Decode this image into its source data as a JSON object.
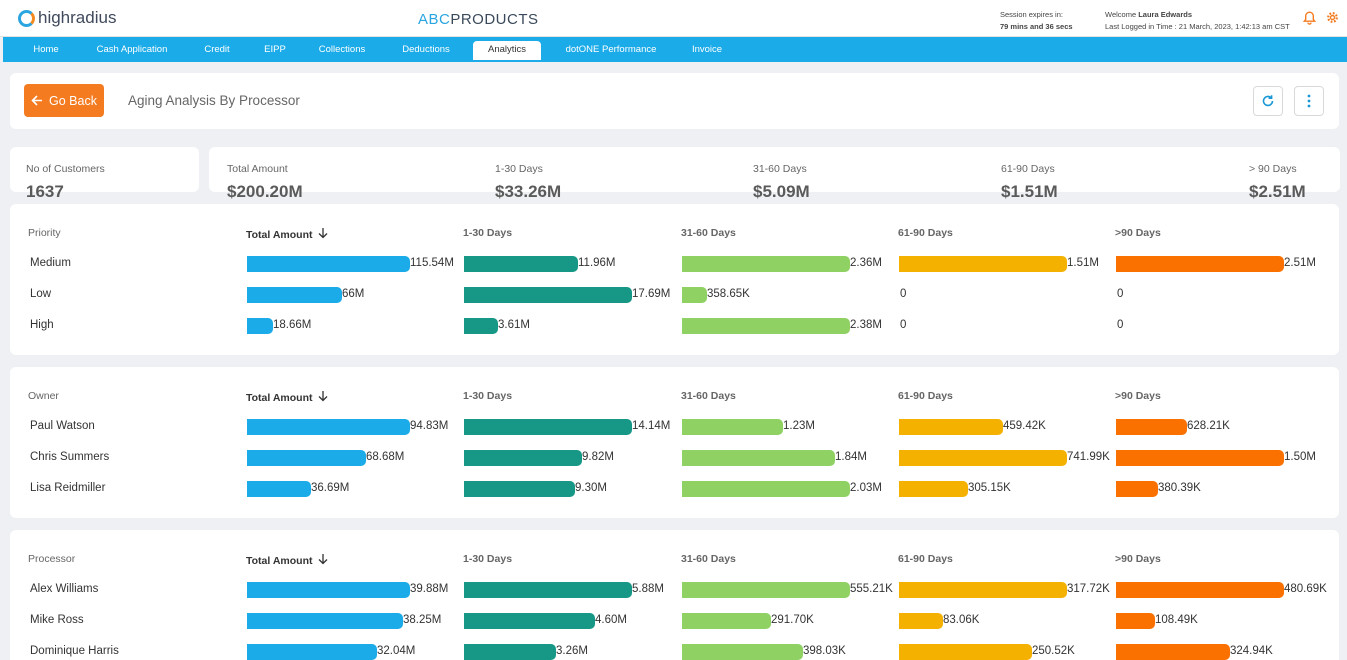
{
  "header": {
    "logo_text": "highradius",
    "brand_prefix": "ABC",
    "brand_suffix": "PRODUCTS",
    "session_label": "Session expires in:",
    "session_time": "79 mins and 36 secs",
    "welcome_label": "Welcome",
    "user_name": "Laura Edwards",
    "last_logged": "Last Logged in Time : 21 March, 2023, 1:42:13 am CST"
  },
  "nav": {
    "tabs": [
      "Home",
      "Cash Application",
      "Credit",
      "EIPP",
      "Collections",
      "Deductions",
      "Analytics",
      "dotONE Performance",
      "Invoice"
    ],
    "active": "Analytics"
  },
  "toolbar": {
    "go_back_label": "Go Back",
    "page_title": "Aging Analysis By Processor"
  },
  "summary": {
    "customers_label": "No of Customers",
    "customers_value": "1637",
    "stats": [
      {
        "label": "Total Amount",
        "value": "$200.20M"
      },
      {
        "label": "1-30 Days",
        "value": "$33.26M"
      },
      {
        "label": "31-60 Days",
        "value": "$5.09M"
      },
      {
        "label": "61-90 Days",
        "value": "$1.51M"
      },
      {
        "label": "> 90 Days",
        "value": "$2.51M"
      }
    ]
  },
  "tables": [
    {
      "group_label": "Priority",
      "columns": [
        "Total Amount",
        "1-30 Days",
        "31-60 Days",
        "61-90 Days",
        ">90 Days"
      ],
      "rows": [
        {
          "name": "Medium",
          "cells": [
            {
              "label": "115.54M",
              "pct": 100
            },
            {
              "label": "11.96M",
              "pct": 68
            },
            {
              "label": "2.36M",
              "pct": 100
            },
            {
              "label": "1.51M",
              "pct": 100
            },
            {
              "label": "2.51M",
              "pct": 100
            }
          ]
        },
        {
          "name": "Low",
          "cells": [
            {
              "label": "66M",
              "pct": 58
            },
            {
              "label": "17.69M",
              "pct": 100
            },
            {
              "label": "358.65K",
              "pct": 15
            },
            {
              "label": "0",
              "pct": 0
            },
            {
              "label": "0",
              "pct": 0
            }
          ]
        },
        {
          "name": "High",
          "cells": [
            {
              "label": "18.66M",
              "pct": 16
            },
            {
              "label": "3.61M",
              "pct": 20
            },
            {
              "label": "2.38M",
              "pct": 100
            },
            {
              "label": "0",
              "pct": 0
            },
            {
              "label": "0",
              "pct": 0
            }
          ]
        }
      ]
    },
    {
      "group_label": "Owner",
      "columns": [
        "Total Amount",
        "1-30 Days",
        "31-60 Days",
        "61-90 Days",
        ">90 Days"
      ],
      "rows": [
        {
          "name": "Paul Watson",
          "cells": [
            {
              "label": "94.83M",
              "pct": 100
            },
            {
              "label": "14.14M",
              "pct": 100
            },
            {
              "label": "1.23M",
              "pct": 60
            },
            {
              "label": "459.42K",
              "pct": 62
            },
            {
              "label": "628.21K",
              "pct": 42
            }
          ]
        },
        {
          "name": "Chris Summers",
          "cells": [
            {
              "label": "68.68M",
              "pct": 73
            },
            {
              "label": "9.82M",
              "pct": 70
            },
            {
              "label": "1.84M",
              "pct": 91
            },
            {
              "label": "741.99K",
              "pct": 100
            },
            {
              "label": "1.50M",
              "pct": 100
            }
          ]
        },
        {
          "name": "Lisa Reidmiller",
          "cells": [
            {
              "label": "36.69M",
              "pct": 39
            },
            {
              "label": "9.30M",
              "pct": 66
            },
            {
              "label": "2.03M",
              "pct": 100
            },
            {
              "label": "305.15K",
              "pct": 41
            },
            {
              "label": "380.39K",
              "pct": 25
            }
          ]
        }
      ]
    },
    {
      "group_label": "Processor",
      "columns": [
        "Total Amount",
        "1-30 Days",
        "31-60 Days",
        "61-90 Days",
        ">90 Days"
      ],
      "rows": [
        {
          "name": "Alex Williams",
          "cells": [
            {
              "label": "39.88M",
              "pct": 100
            },
            {
              "label": "5.88M",
              "pct": 100
            },
            {
              "label": "555.21K",
              "pct": 100
            },
            {
              "label": "317.72K",
              "pct": 100
            },
            {
              "label": "480.69K",
              "pct": 100
            }
          ]
        },
        {
          "name": "Mike Ross",
          "cells": [
            {
              "label": "38.25M",
              "pct": 96
            },
            {
              "label": "4.60M",
              "pct": 78
            },
            {
              "label": "291.70K",
              "pct": 53
            },
            {
              "label": "83.06K",
              "pct": 26
            },
            {
              "label": "108.49K",
              "pct": 23
            }
          ]
        },
        {
          "name": "Dominique Harris",
          "cells": [
            {
              "label": "32.04M",
              "pct": 80
            },
            {
              "label": "3.26M",
              "pct": 55
            },
            {
              "label": "398.03K",
              "pct": 72
            },
            {
              "label": "250.52K",
              "pct": 79
            },
            {
              "label": "324.94K",
              "pct": 68
            }
          ]
        }
      ]
    }
  ]
}
